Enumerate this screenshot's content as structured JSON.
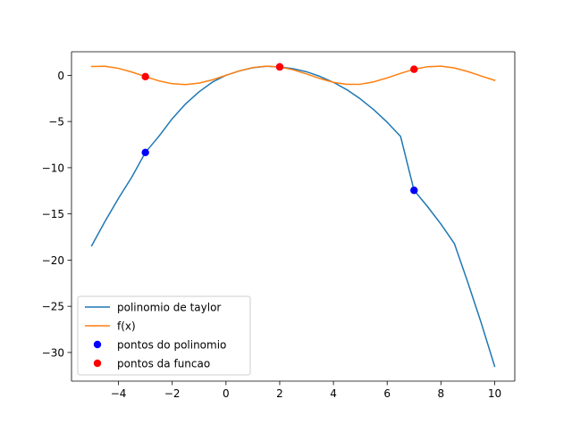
{
  "chart_data": {
    "type": "line",
    "title": "",
    "xlabel": "",
    "ylabel": "",
    "xlim": [
      -5.75,
      10.75
    ],
    "ylim": [
      -33.1,
      2.55
    ],
    "xticks": [
      -4,
      -2,
      0,
      2,
      4,
      6,
      8,
      10
    ],
    "yticks": [
      0,
      -5,
      -10,
      -15,
      -20,
      -25,
      -30
    ],
    "grid": false,
    "legend_position": "lower-left",
    "series": [
      {
        "name": "polinomio de taylor",
        "kind": "line",
        "color": "#1f77b4",
        "x": [
          -5,
          -4.5,
          -4,
          -3.5,
          -3,
          -2.5,
          -2,
          -1.5,
          -1,
          -0.5,
          0,
          0.5,
          1,
          1.5,
          2,
          2.5,
          3,
          3.5,
          4,
          4.5,
          5,
          5.5,
          6,
          6.5,
          7,
          7.5,
          8,
          8.5,
          9,
          9.5,
          10
        ],
        "y": [
          -18.45,
          -15.79,
          -13.31,
          -10.99,
          -8.35,
          -6.61,
          -4.69,
          -3.08,
          -1.78,
          -0.72,
          0.0,
          0.48,
          0.82,
          0.98,
          0.91,
          0.72,
          0.38,
          -0.12,
          -0.76,
          -1.56,
          -2.55,
          -3.72,
          -5.08,
          -6.62,
          -12.45,
          -14.2,
          -16.1,
          -18.2,
          -22.4,
          -26.8,
          -31.5
        ]
      },
      {
        "name": "f(x)",
        "kind": "line",
        "color": "#ff7f0e",
        "x": [
          -5,
          -4.5,
          -4,
          -3.5,
          -3,
          -2.5,
          -2,
          -1.5,
          -1,
          -0.5,
          0,
          0.5,
          1,
          1.5,
          2,
          2.5,
          3,
          3.5,
          4,
          4.5,
          5,
          5.5,
          6,
          6.5,
          7,
          7.5,
          8,
          8.5,
          9,
          9.5,
          10
        ],
        "y": [
          0.959,
          0.978,
          0.757,
          0.351,
          -0.141,
          -0.598,
          -0.909,
          -0.997,
          -0.841,
          -0.479,
          0.0,
          0.479,
          0.841,
          0.997,
          0.909,
          0.598,
          0.141,
          -0.351,
          -0.757,
          -0.978,
          -0.959,
          -0.706,
          -0.279,
          0.215,
          0.657,
          0.938,
          0.989,
          0.798,
          0.412,
          -0.075,
          -0.544
        ]
      },
      {
        "name": "pontos do polinomio",
        "kind": "scatter",
        "color": "#0000ff",
        "x": [
          -3,
          2,
          7
        ],
        "y": [
          -8.35,
          0.91,
          -12.45
        ]
      },
      {
        "name": "pontos da funcao",
        "kind": "scatter",
        "color": "#ff0000",
        "x": [
          -3,
          2,
          7
        ],
        "y": [
          -0.141,
          0.909,
          0.657
        ]
      }
    ]
  }
}
